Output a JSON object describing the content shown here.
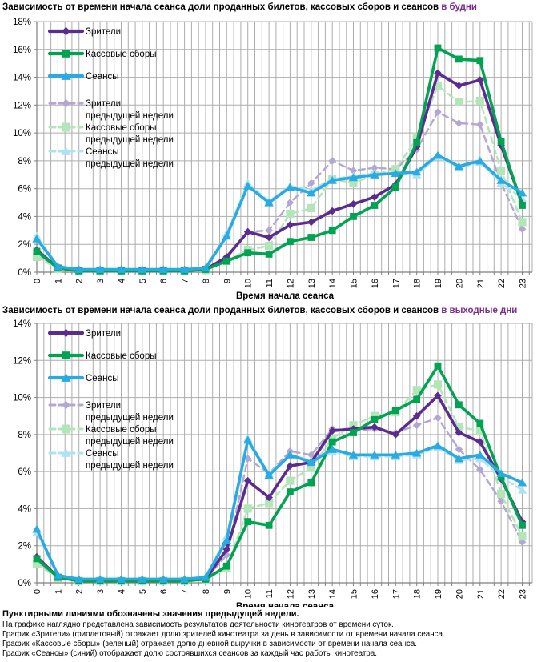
{
  "colors": {
    "title_accent": "#7B2E8E",
    "grid": "#ADADAD",
    "axis": "#7F7F7F",
    "text": "#000000",
    "purple": "#5B2B8F",
    "green": "#00A351",
    "cyan": "#29ABE2",
    "light_purple": "#B3A6D2",
    "light_green": "#B2E6B8",
    "light_cyan": "#ADE2F2"
  },
  "chart_data": [
    {
      "type": "line",
      "title": "Зависимость от времени начала сеанса доли проданных билетов, кассовых сборов и сеансов",
      "title_accent": "в будни",
      "xlabel": "Время начала сеанса",
      "ylabel": "",
      "ylim": [
        0,
        18
      ],
      "ytick_step": 2,
      "ytick_suffix": "%",
      "grid": "on",
      "legend_position": "top-left-inside",
      "categories": [
        0,
        1,
        2,
        3,
        4,
        5,
        6,
        7,
        8,
        9,
        10,
        11,
        12,
        13,
        14,
        15,
        16,
        17,
        18,
        19,
        20,
        21,
        22,
        23
      ],
      "series": [
        {
          "key": "zriteli",
          "label": "Зрители",
          "label2": "",
          "color": "#5B2B8F",
          "style": "solid",
          "marker": "diamond",
          "values": [
            1.6,
            0.3,
            0.15,
            0.15,
            0.15,
            0.15,
            0.15,
            0.15,
            0.2,
            1.1,
            2.9,
            2.5,
            3.4,
            3.6,
            4.4,
            4.9,
            5.4,
            6.3,
            9.0,
            14.3,
            13.4,
            13.8,
            9.1,
            4.9
          ]
        },
        {
          "key": "kassovye",
          "label": "Кассовые сборы",
          "label2": "",
          "color": "#00A351",
          "style": "solid",
          "marker": "square",
          "values": [
            1.5,
            0.3,
            0.1,
            0.1,
            0.1,
            0.1,
            0.1,
            0.1,
            0.2,
            0.8,
            1.4,
            1.3,
            2.2,
            2.5,
            3.0,
            4.0,
            4.8,
            6.1,
            9.3,
            16.1,
            15.3,
            15.2,
            9.4,
            4.8
          ]
        },
        {
          "key": "seansy",
          "label": "Сеансы",
          "label2": "",
          "color": "#29ABE2",
          "style": "solid",
          "marker": "triangle",
          "values": [
            2.4,
            0.4,
            0.2,
            0.2,
            0.2,
            0.2,
            0.2,
            0.2,
            0.3,
            2.6,
            6.2,
            5.0,
            6.1,
            5.7,
            6.6,
            6.8,
            7.0,
            7.1,
            7.2,
            8.4,
            7.6,
            8.0,
            6.6,
            5.7
          ]
        },
        {
          "key": "zriteli_prev",
          "label": "Зрители",
          "label2": "предыдущей недели",
          "color": "#B3A6D2",
          "style": "dashed",
          "marker": "diamond",
          "values": [
            1.3,
            0.3,
            0.15,
            0.15,
            0.15,
            0.15,
            0.15,
            0.15,
            0.2,
            1.0,
            2.9,
            3.0,
            5.0,
            6.4,
            8.0,
            7.3,
            7.5,
            7.4,
            8.8,
            11.5,
            10.7,
            10.6,
            6.4,
            3.1
          ]
        },
        {
          "key": "kassovye_prev",
          "label": "Кассовые сборы",
          "label2": "предыдущей недели",
          "color": "#B2E6B8",
          "style": "dashed",
          "marker": "square",
          "values": [
            1.1,
            0.25,
            0.1,
            0.1,
            0.1,
            0.1,
            0.1,
            0.1,
            0.15,
            0.8,
            1.6,
            1.9,
            4.2,
            4.6,
            6.7,
            6.4,
            7.0,
            7.4,
            9.6,
            13.4,
            12.2,
            12.3,
            7.3,
            3.6
          ]
        },
        {
          "key": "seansy_prev",
          "label": "Сеансы",
          "label2": "предыдущей недели",
          "color": "#ADE2F2",
          "style": "dashed",
          "marker": "triangle",
          "values": [
            2.6,
            0.45,
            0.2,
            0.2,
            0.2,
            0.2,
            0.2,
            0.2,
            0.3,
            2.8,
            6.4,
            5.1,
            6.2,
            5.9,
            6.7,
            6.9,
            7.1,
            7.1,
            7.0,
            8.3,
            7.5,
            7.9,
            6.4,
            5.3
          ]
        }
      ]
    },
    {
      "type": "line",
      "title": "Зависимость от времени начала сеанса доли проданных билетов, кассовых сборов и сеансов",
      "title_accent": "в выходные дни",
      "xlabel": "Время начала сеанса",
      "ylabel": "",
      "ylim": [
        0,
        14
      ],
      "ytick_step": 2,
      "ytick_suffix": "%",
      "grid": "on",
      "legend_position": "top-left-inside",
      "categories": [
        0,
        1,
        2,
        3,
        4,
        5,
        6,
        7,
        8,
        9,
        10,
        11,
        12,
        13,
        14,
        15,
        16,
        17,
        18,
        19,
        20,
        21,
        22,
        23
      ],
      "series": [
        {
          "key": "zriteli",
          "label": "Зрители",
          "label2": "",
          "color": "#5B2B8F",
          "style": "solid",
          "marker": "diamond",
          "values": [
            1.4,
            0.3,
            0.15,
            0.15,
            0.15,
            0.15,
            0.15,
            0.15,
            0.2,
            1.8,
            5.5,
            4.6,
            6.3,
            6.5,
            8.2,
            8.3,
            8.4,
            8.0,
            9.0,
            10.1,
            8.1,
            7.6,
            5.6,
            3.3
          ]
        },
        {
          "key": "kassovye",
          "label": "Кассовые сборы",
          "label2": "",
          "color": "#00A351",
          "style": "solid",
          "marker": "square",
          "values": [
            1.3,
            0.3,
            0.1,
            0.1,
            0.1,
            0.1,
            0.1,
            0.1,
            0.2,
            0.9,
            3.3,
            3.1,
            4.9,
            5.4,
            7.6,
            8.1,
            8.8,
            9.3,
            9.9,
            11.7,
            9.6,
            8.6,
            5.7,
            3.1
          ]
        },
        {
          "key": "seansy",
          "label": "Сеансы",
          "label2": "",
          "color": "#29ABE2",
          "style": "solid",
          "marker": "triangle",
          "values": [
            2.9,
            0.4,
            0.2,
            0.2,
            0.2,
            0.2,
            0.2,
            0.2,
            0.3,
            2.3,
            7.7,
            5.8,
            6.9,
            6.5,
            7.2,
            6.9,
            6.9,
            6.9,
            7.0,
            7.4,
            6.7,
            6.9,
            5.9,
            5.4
          ]
        },
        {
          "key": "zriteli_prev",
          "label": "Зрители",
          "label2": "предыдущей недели",
          "color": "#B3A6D2",
          "style": "dashed",
          "marker": "diamond",
          "values": [
            1.1,
            0.3,
            0.15,
            0.15,
            0.15,
            0.15,
            0.15,
            0.15,
            0.2,
            1.5,
            6.7,
            5.9,
            7.1,
            6.9,
            8.3,
            8.2,
            8.3,
            8.1,
            8.5,
            8.9,
            7.2,
            6.1,
            4.4,
            2.2
          ]
        },
        {
          "key": "kassovye_prev",
          "label": "Кассовые сборы",
          "label2": "предыдущей недели",
          "color": "#B2E6B8",
          "style": "dashed",
          "marker": "square",
          "values": [
            1.0,
            0.25,
            0.1,
            0.1,
            0.1,
            0.1,
            0.1,
            0.1,
            0.15,
            0.8,
            4.0,
            4.3,
            5.5,
            6.2,
            7.8,
            8.5,
            9.0,
            9.2,
            10.4,
            10.7,
            8.4,
            8.2,
            4.8,
            2.5
          ]
        },
        {
          "key": "seansy_prev",
          "label": "Сеансы",
          "label2": "предыдущей недели",
          "color": "#ADE2F2",
          "style": "dashed",
          "marker": "triangle",
          "values": [
            2.7,
            0.4,
            0.2,
            0.2,
            0.2,
            0.2,
            0.2,
            0.2,
            0.3,
            2.5,
            7.8,
            5.9,
            6.9,
            6.6,
            7.1,
            6.8,
            6.8,
            6.8,
            6.9,
            7.3,
            6.6,
            6.7,
            5.7,
            5.0
          ]
        }
      ]
    }
  ],
  "footer": {
    "bold_line": "Пунктирными линиями обозначены значения предыдущей недели.",
    "lines": [
      "На графике наглядно представлена зависимость результатов деятельности кинотеатров от времени суток.",
      "График «Зрители» (фиолетовый) отражает долю зрителей кинотеатра за день в зависимости от времени начала сеанса.",
      "График «Кассовые сборы» (зеленый) отражает долю дневной выручки в зависимости от времени начала сеанса.",
      "График «Сеансы» (синий) отображает долю состоявшихся сеансов за каждый час работы кинотеатра."
    ]
  }
}
